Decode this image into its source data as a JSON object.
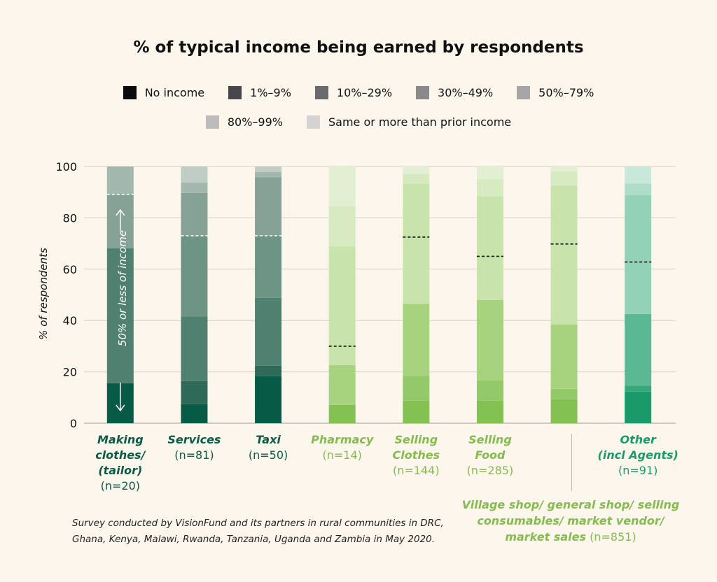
{
  "title": "% of typical income being earned by respondents",
  "legend": [
    {
      "label": "No income",
      "color": "#0b0b0b"
    },
    {
      "label": "1%–9%",
      "color": "#47474b"
    },
    {
      "label": "10%–29%",
      "color": "#6b6b6d"
    },
    {
      "label": "30%–49%",
      "color": "#8a8a8a"
    },
    {
      "label": "50%–79%",
      "color": "#a5a5a5"
    },
    {
      "label": "80%–99%",
      "color": "#bcbcbc"
    },
    {
      "label": "Same or more than prior income",
      "color": "#d3d3d3"
    }
  ],
  "annotation": "50% or less of income",
  "footnote": "Survey conducted by VisionFund and its partners in rural communities in DRC, Ghana, Kenya, Malawi, Rwanda, Tanzania, Uganda and Zambia in May 2020.",
  "village_group": {
    "name": "Village shop/ general shop/ selling consumables/ market vendor/ market sales",
    "n": "(n=851)"
  },
  "chart_data": {
    "type": "bar",
    "stacked": true,
    "ylabel": "% of respondents",
    "ylim": [
      0,
      100
    ],
    "yticks": [
      0,
      20,
      40,
      60,
      80,
      100
    ],
    "grid": true,
    "segments": [
      "No income",
      "1%–9%",
      "10%–29%",
      "30%–49%",
      "50%–79%",
      "80%–99%",
      "Same or more than prior income"
    ],
    "categories": [
      {
        "name": "Making\nclothes/\n(tailor)",
        "n": "(n=20)",
        "values": [
          15.6,
          0,
          52.5,
          0,
          21.0,
          10.9,
          0
        ],
        "median_line": 89.1,
        "colors": [
          "#065a46",
          "#2f6a58",
          "#4f8070",
          "#6e9485",
          "#86a296",
          "#a2b8ae",
          "#c0cdc6"
        ],
        "label_color": "#0a5a48",
        "line_color": "#ffffff"
      },
      {
        "name": "Services",
        "n": "(n=81)",
        "values": [
          7.4,
          9.0,
          25.2,
          31.4,
          16.7,
          4.1,
          6.2
        ],
        "median_line": 73.0,
        "colors": [
          "#065a46",
          "#2f6a58",
          "#4f8070",
          "#6e9485",
          "#86a296",
          "#a2b8ae",
          "#c0cdc6"
        ],
        "label_color": "#0a5a48",
        "line_color": "#ffffff"
      },
      {
        "name": "Taxi",
        "n": "(n=50)",
        "values": [
          18.3,
          4.1,
          26.4,
          24.3,
          22.7,
          2.1,
          2.1
        ],
        "median_line": 73.0,
        "colors": [
          "#065a46",
          "#2f6a58",
          "#4f8070",
          "#6e9485",
          "#86a296",
          "#a2b8ae",
          "#c0cdc6"
        ],
        "label_color": "#0a5a48",
        "line_color": "#ffffff"
      },
      {
        "name": "Pharmacy",
        "n": "(n=14)",
        "values": [
          7.1,
          0,
          15.6,
          0,
          46.2,
          15.6,
          15.5
        ],
        "median_line": 30.0,
        "colors": [
          "#82c152",
          "#94c96a",
          "#a7d37f",
          "#b8da92",
          "#c9e3ad",
          "#d7eac2",
          "#e3efd2"
        ],
        "label_color": "#86bb4f",
        "line_color": "#111111"
      },
      {
        "name": "Selling\nClothes",
        "n": "(n=144)",
        "values": [
          8.8,
          9.6,
          28.1,
          0,
          46.8,
          3.7,
          3.0
        ],
        "median_line": 72.5,
        "colors": [
          "#82c152",
          "#94c96a",
          "#a7d37f",
          "#b8da92",
          "#c9e3ad",
          "#d7eac2",
          "#e3efd2"
        ],
        "label_color": "#86bb4f",
        "line_color": "#111111"
      },
      {
        "name": "Selling\nFood",
        "n": "(n=285)",
        "values": [
          8.8,
          7.8,
          31.4,
          0,
          40.3,
          6.7,
          5.0
        ],
        "median_line": 65.0,
        "colors": [
          "#82c152",
          "#94c96a",
          "#a7d37f",
          "#b8da92",
          "#c9e3ad",
          "#d7eac2",
          "#e3efd2"
        ],
        "label_color": "#86bb4f",
        "line_color": "#111111"
      },
      {
        "name": "",
        "n": "",
        "values": [
          9.3,
          4.1,
          25.1,
          0,
          54.0,
          5.6,
          1.9
        ],
        "median_line": 69.8,
        "colors": [
          "#82c152",
          "#94c96a",
          "#a7d37f",
          "#b8da92",
          "#c9e3ad",
          "#d7eac2",
          "#e3efd2"
        ],
        "label_color": "#86bb4f",
        "line_color": "#111111"
      },
      {
        "name": "Other\n(incl Agents)",
        "n": "(n=91)",
        "values": [
          12.3,
          2.3,
          27.9,
          0,
          46.3,
          4.6,
          6.6
        ],
        "median_line": 62.8,
        "colors": [
          "#1a9a6a",
          "#3aa77b",
          "#5bb894",
          "#79c6a7",
          "#93d2b7",
          "#aeddc9",
          "#c7e8da"
        ],
        "label_color": "#1a9a6a",
        "line_color": "#111111"
      }
    ]
  }
}
